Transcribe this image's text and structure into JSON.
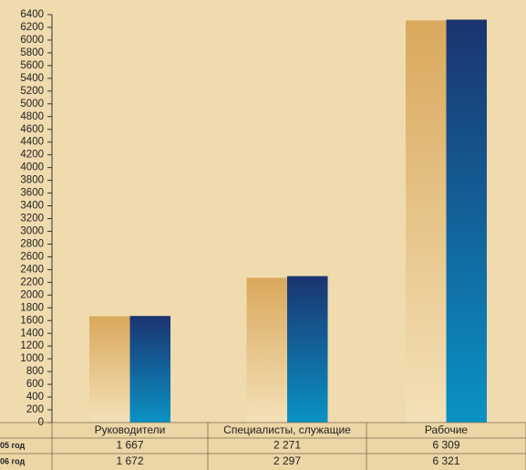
{
  "chart_data": {
    "type": "bar",
    "categories": [
      "Руководители",
      "Специалисты, служащие",
      "Рабочие"
    ],
    "series": [
      {
        "name": "05 год",
        "color": "#d9a85c",
        "values": [
          1667,
          2271,
          6309
        ],
        "value_labels": [
          "1 667",
          "2 271",
          "6 309"
        ]
      },
      {
        "name": "06 год",
        "color": "#1b3470",
        "values": [
          1672,
          2297,
          6321
        ],
        "value_labels": [
          "1 672",
          "2 297",
          "6 321"
        ]
      }
    ],
    "ylim": [
      0,
      6400
    ],
    "yticks": [
      0,
      200,
      400,
      600,
      800,
      1000,
      1200,
      1400,
      1600,
      1800,
      2000,
      2200,
      2400,
      2600,
      2800,
      3000,
      3200,
      3400,
      3600,
      3800,
      4000,
      4200,
      4400,
      4600,
      4800,
      5000,
      5200,
      5400,
      5600,
      5800,
      6000,
      6200,
      6400
    ]
  }
}
